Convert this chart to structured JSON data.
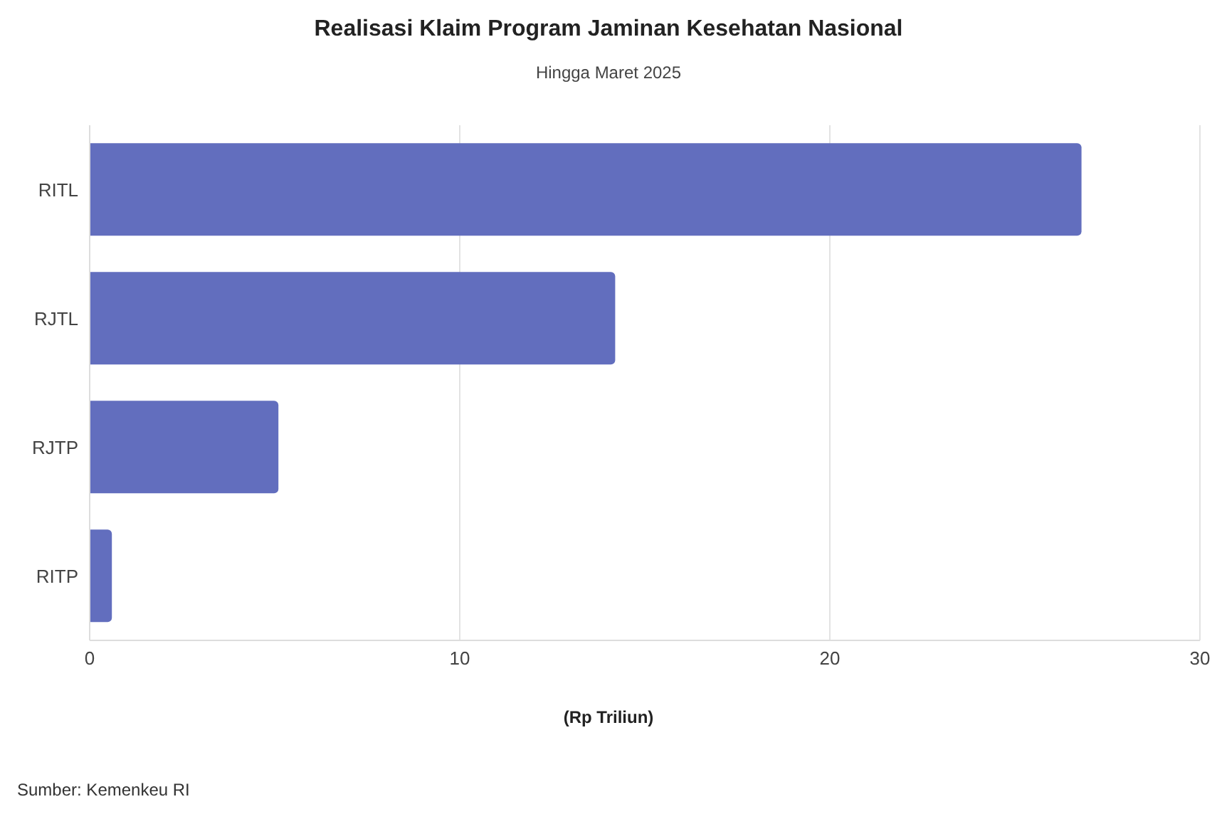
{
  "chart_data": {
    "type": "bar",
    "orientation": "horizontal",
    "title": "Realisasi Klaim Program Jaminan Kesehatan Nasional",
    "subtitle": "Hingga Maret 2025",
    "xlabel": "(Rp Triliun)",
    "categories": [
      "RITL",
      "RJTL",
      "RJTP",
      "RITP"
    ],
    "values": [
      26.8,
      14.2,
      5.1,
      0.6
    ],
    "color": "#626ebe",
    "xlim": [
      0,
      30
    ],
    "xticks": [
      0,
      10,
      20,
      30
    ],
    "grid": "x",
    "annotations": [
      "Sumber: Kemenkeu RI"
    ]
  }
}
